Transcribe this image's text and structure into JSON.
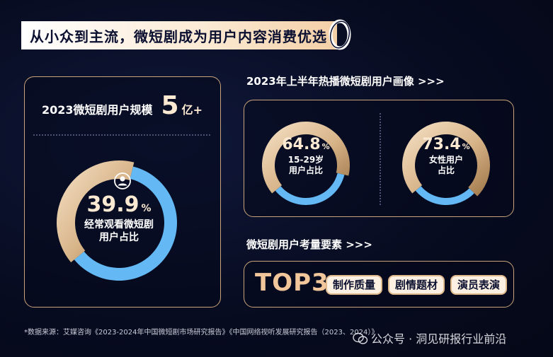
{
  "banner": {
    "title": "从小众到主流，微短剧成为用户内容消费优选"
  },
  "left_panel": {
    "scale_label": "2023微短剧用户规模",
    "scale_value": "5",
    "scale_unit": "亿+",
    "donut_value": "39.9",
    "donut_unit": "%",
    "donut_line1": "经常观看微短剧",
    "donut_line2": "用户占比"
  },
  "right_top": {
    "title": "2023年上半年热播微短剧用户画像 >>>",
    "age": {
      "value": "64.8",
      "unit": "%",
      "line1": "15-29岁",
      "line2": "用户占比"
    },
    "female": {
      "value": "73.4",
      "unit": "%",
      "line1": "女性用户",
      "line2": "占比"
    }
  },
  "right_bottom": {
    "title": "微短剧用户考量要素 >>>",
    "top_label": "TOP3",
    "tags": [
      "制作质量",
      "剧情题材",
      "演员表演"
    ]
  },
  "footnote": "*数据来源：艾媒咨询《2023-2024年中国微短剧市场研究报告》《中国网络视听发展研究报告（2023、2024）》",
  "watermark": "公众号 · 洞见研报行业前沿",
  "colors": {
    "accent_blue": "#64b9f5",
    "gold_light": "#f3dcc0",
    "gold_dark": "#a8804f",
    "background": "#070b1f",
    "border": "#c9a47a"
  },
  "chart_data": [
    {
      "type": "pie",
      "title": "经常观看微短剧用户占比",
      "values": [
        39.9,
        60.1
      ],
      "unit": "%"
    },
    {
      "type": "pie",
      "title": "15-29岁用户占比",
      "values": [
        64.8,
        35.2
      ],
      "unit": "%"
    },
    {
      "type": "pie",
      "title": "女性用户占比",
      "values": [
        73.4,
        26.6
      ],
      "unit": "%"
    }
  ]
}
